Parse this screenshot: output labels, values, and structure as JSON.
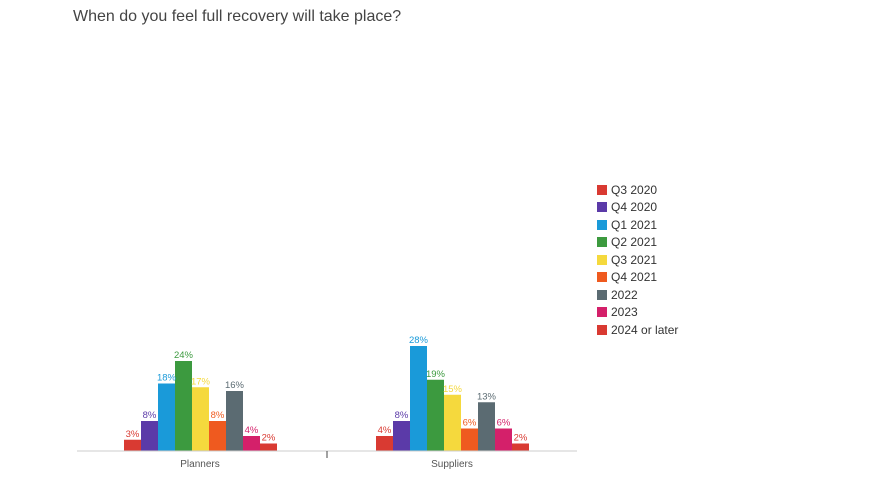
{
  "chart_data": {
    "type": "bar",
    "title": "When do you feel full recovery will take place?",
    "categories": [
      "Planners",
      "Suppliers"
    ],
    "series": [
      {
        "name": "Q3 2020",
        "color": "#d93a32",
        "values": [
          3,
          4
        ]
      },
      {
        "name": "Q4 2020",
        "color": "#5b3aa8",
        "values": [
          8,
          8
        ]
      },
      {
        "name": "Q1 2021",
        "color": "#1a9ad9",
        "values": [
          18,
          28
        ]
      },
      {
        "name": "Q2 2021",
        "color": "#3c9a3f",
        "values": [
          24,
          19
        ]
      },
      {
        "name": "Q3 2021",
        "color": "#f5d93d",
        "values": [
          17,
          15
        ]
      },
      {
        "name": "Q4 2021",
        "color": "#ef5a1f",
        "values": [
          8,
          6
        ]
      },
      {
        "name": "2022",
        "color": "#5b6b72",
        "values": [
          16,
          13
        ]
      },
      {
        "name": "2023",
        "color": "#d4206a",
        "values": [
          4,
          6
        ]
      },
      {
        "name": "2024 or later",
        "color": "#d93a32",
        "values": [
          2,
          2
        ]
      }
    ],
    "value_suffix": "%",
    "ylim": [
      0,
      28
    ],
    "grid": false,
    "legend": "right"
  }
}
